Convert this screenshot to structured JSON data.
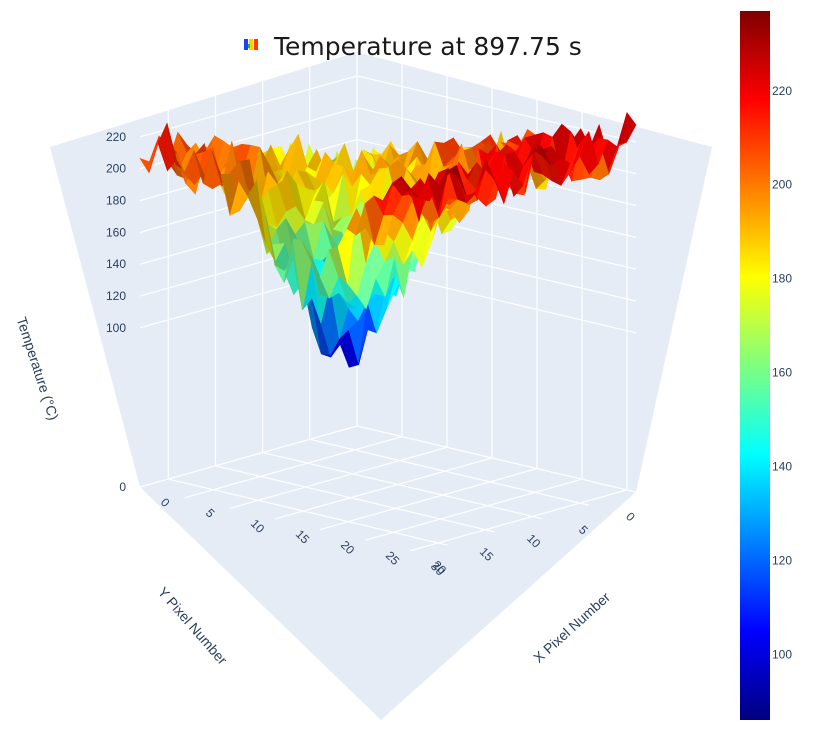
{
  "chart_data": {
    "type": "surface3d",
    "title": "Temperature at 897.75 s",
    "xlabel": "X Pixel Number",
    "ylabel": "Y Pixel Number",
    "zlabel": "Temperature (°C)",
    "x_ticks": [
      0,
      5,
      10,
      15,
      20,
      25,
      30
    ],
    "y_ticks": [
      0,
      5,
      10,
      15,
      20
    ],
    "z_ticks": [
      0,
      100,
      120,
      140,
      160,
      180,
      200,
      220
    ],
    "xlim": [
      0,
      31
    ],
    "ylim": [
      0,
      23
    ],
    "zlim": [
      0,
      235
    ],
    "colorscale": "jet",
    "colorbar": {
      "range": [
        86,
        237
      ],
      "ticks": [
        100,
        120,
        140,
        160,
        180,
        200,
        220
      ]
    },
    "colors": [
      "#00007f",
      "#0000ff",
      "#007fff",
      "#00ffff",
      "#7fff7f",
      "#ffff00",
      "#ff7f00",
      "#ff0000",
      "#7f0000"
    ],
    "surface_profile": {
      "corner_x0_y0": 150,
      "corner_x31_y0": 220,
      "corner_x0_y23": 210,
      "corner_x31_y23": 225,
      "min_region": {
        "x": 18,
        "y": 18,
        "value": 105
      }
    }
  }
}
